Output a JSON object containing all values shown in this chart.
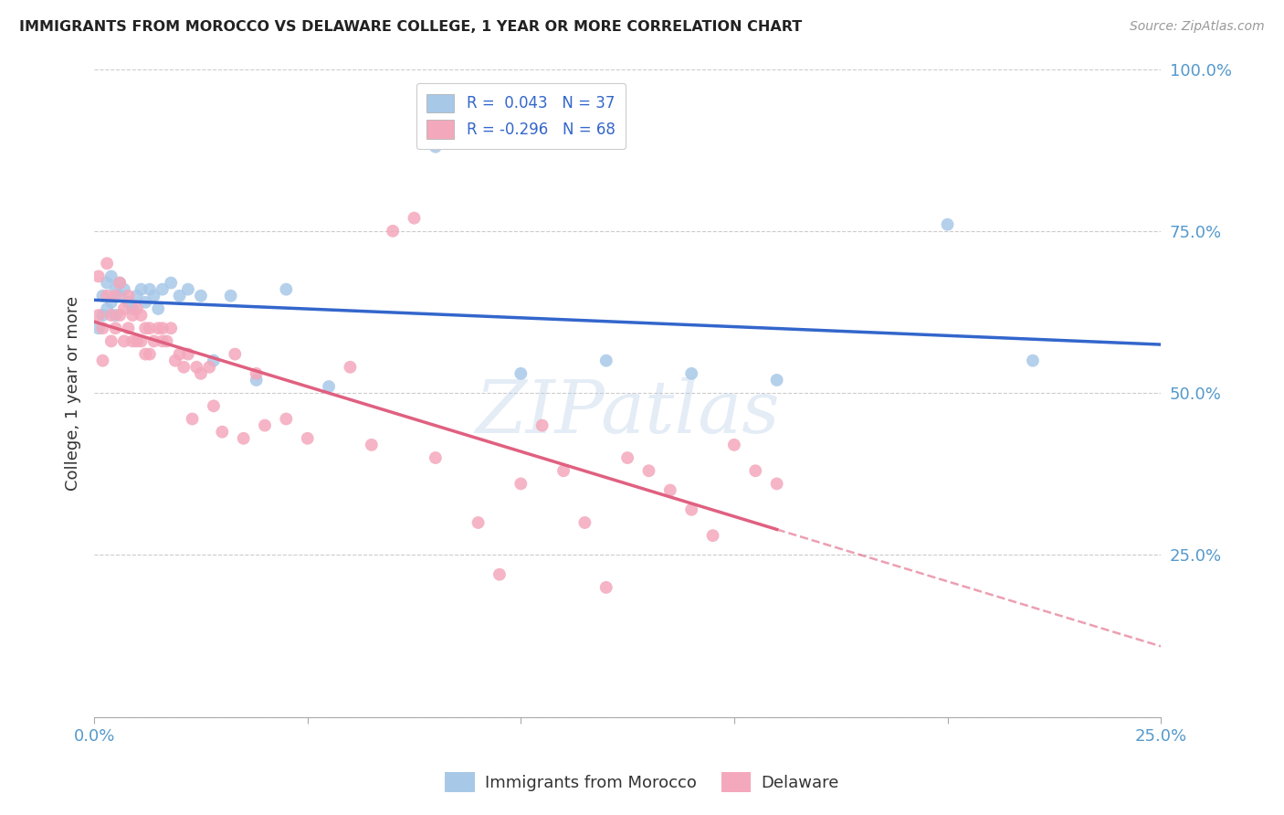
{
  "title": "IMMIGRANTS FROM MOROCCO VS DELAWARE COLLEGE, 1 YEAR OR MORE CORRELATION CHART",
  "source": "Source: ZipAtlas.com",
  "ylabel": "College, 1 year or more",
  "xlim": [
    0.0,
    0.25
  ],
  "ylim": [
    0.0,
    1.0
  ],
  "blue_color": "#a8c8e8",
  "pink_color": "#f4a8bc",
  "blue_line_color": "#3366cc",
  "pink_line_color": "#e06080",
  "watermark": "ZIPatlas",
  "blue_x": [
    0.001,
    0.002,
    0.002,
    0.003,
    0.003,
    0.004,
    0.004,
    0.005,
    0.005,
    0.006,
    0.006,
    0.007,
    0.008,
    0.009,
    0.01,
    0.011,
    0.012,
    0.013,
    0.014,
    0.015,
    0.016,
    0.018,
    0.02,
    0.022,
    0.025,
    0.028,
    0.032,
    0.038,
    0.045,
    0.055,
    0.08,
    0.1,
    0.12,
    0.14,
    0.16,
    0.2,
    0.22
  ],
  "blue_y": [
    0.6,
    0.62,
    0.65,
    0.63,
    0.67,
    0.64,
    0.68,
    0.66,
    0.62,
    0.65,
    0.67,
    0.66,
    0.64,
    0.63,
    0.65,
    0.66,
    0.64,
    0.66,
    0.65,
    0.63,
    0.66,
    0.67,
    0.65,
    0.66,
    0.65,
    0.55,
    0.65,
    0.52,
    0.66,
    0.51,
    0.88,
    0.53,
    0.55,
    0.53,
    0.52,
    0.76,
    0.55
  ],
  "pink_x": [
    0.001,
    0.001,
    0.002,
    0.002,
    0.003,
    0.003,
    0.004,
    0.004,
    0.005,
    0.005,
    0.006,
    0.006,
    0.007,
    0.007,
    0.008,
    0.008,
    0.009,
    0.009,
    0.01,
    0.01,
    0.011,
    0.011,
    0.012,
    0.012,
    0.013,
    0.013,
    0.014,
    0.015,
    0.016,
    0.016,
    0.017,
    0.018,
    0.019,
    0.02,
    0.021,
    0.022,
    0.023,
    0.024,
    0.025,
    0.027,
    0.028,
    0.03,
    0.033,
    0.035,
    0.038,
    0.04,
    0.045,
    0.05,
    0.06,
    0.065,
    0.07,
    0.075,
    0.08,
    0.09,
    0.095,
    0.1,
    0.105,
    0.11,
    0.115,
    0.12,
    0.125,
    0.13,
    0.135,
    0.14,
    0.145,
    0.15,
    0.155,
    0.16
  ],
  "pink_y": [
    0.68,
    0.62,
    0.6,
    0.55,
    0.7,
    0.65,
    0.62,
    0.58,
    0.65,
    0.6,
    0.67,
    0.62,
    0.63,
    0.58,
    0.65,
    0.6,
    0.62,
    0.58,
    0.63,
    0.58,
    0.62,
    0.58,
    0.6,
    0.56,
    0.6,
    0.56,
    0.58,
    0.6,
    0.6,
    0.58,
    0.58,
    0.6,
    0.55,
    0.56,
    0.54,
    0.56,
    0.46,
    0.54,
    0.53,
    0.54,
    0.48,
    0.44,
    0.56,
    0.43,
    0.53,
    0.45,
    0.46,
    0.43,
    0.54,
    0.42,
    0.75,
    0.77,
    0.4,
    0.3,
    0.22,
    0.36,
    0.45,
    0.38,
    0.3,
    0.2,
    0.4,
    0.38,
    0.35,
    0.32,
    0.28,
    0.42,
    0.38,
    0.36
  ]
}
